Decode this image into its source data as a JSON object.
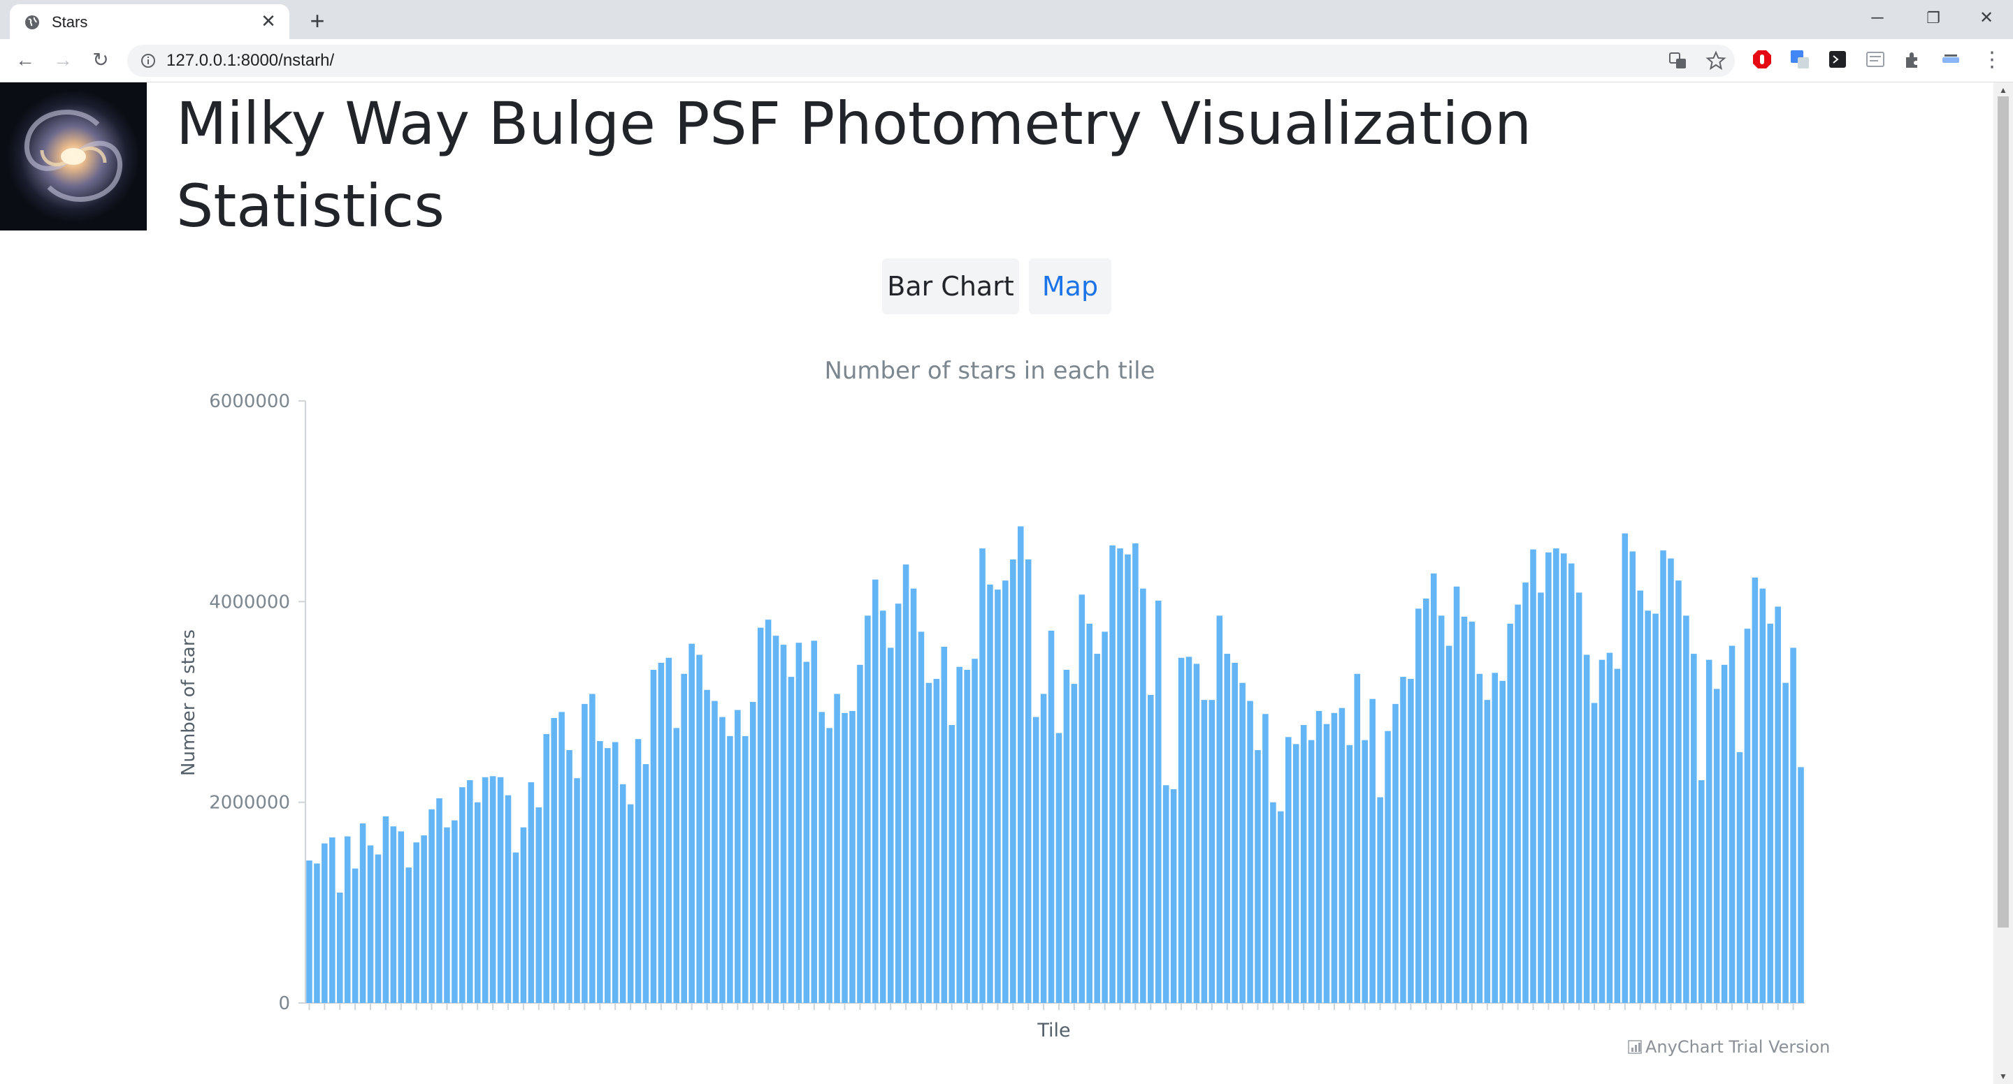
{
  "browser": {
    "tab_title": "Stars",
    "url": "127.0.0.1:8000/nstarh/",
    "icons": [
      "globe-icon",
      "close-icon",
      "plus-icon",
      "back-icon",
      "forward-icon",
      "reload-icon",
      "info-icon",
      "translate-icon",
      "star-icon",
      "extensions-icon",
      "menu-icon"
    ]
  },
  "page": {
    "title": "Milky Way Bulge PSF Photometry Visualization Statistics",
    "nav": {
      "bar_chart_label": "Bar Chart",
      "map_label": "Map"
    },
    "credit": "AnyChart Trial Version"
  },
  "colors": {
    "bar": "#64b5f6",
    "active_link": "#1a73e8",
    "title": "#212529"
  },
  "chart_data": {
    "type": "bar",
    "title": "Number of stars in each tile",
    "xlabel": "Tile",
    "ylabel": "Number of stars",
    "ylim": [
      0,
      6000000
    ],
    "yticks": [
      "0",
      "2000000",
      "4000000",
      "6000000"
    ],
    "values": [
      1420000,
      1390000,
      1590000,
      1650000,
      1100000,
      1660000,
      1340000,
      1790000,
      1570000,
      1480000,
      1860000,
      1760000,
      1710000,
      1350000,
      1600000,
      1670000,
      1930000,
      2040000,
      1750000,
      1820000,
      2150000,
      2220000,
      2000000,
      2250000,
      2260000,
      2250000,
      2070000,
      1500000,
      1750000,
      2200000,
      1950000,
      2680000,
      2840000,
      2900000,
      2520000,
      2240000,
      2980000,
      3080000,
      2610000,
      2540000,
      2600000,
      2180000,
      1980000,
      2630000,
      2380000,
      3320000,
      3390000,
      3440000,
      2740000,
      3280000,
      3580000,
      3470000,
      3120000,
      3010000,
      2850000,
      2660000,
      2920000,
      2660000,
      3000000,
      3740000,
      3820000,
      3660000,
      3570000,
      3250000,
      3590000,
      3400000,
      3610000,
      2900000,
      2740000,
      3080000,
      2890000,
      2910000,
      3370000,
      3860000,
      4220000,
      3910000,
      3540000,
      3980000,
      4370000,
      4130000,
      3700000,
      3190000,
      3230000,
      3550000,
      2770000,
      3350000,
      3320000,
      3430000,
      4530000,
      4170000,
      4120000,
      4210000,
      4420000,
      4750000,
      4420000,
      2850000,
      3080000,
      3710000,
      2690000,
      3320000,
      3180000,
      4070000,
      3780000,
      3480000,
      3700000,
      4560000,
      4530000,
      4470000,
      4580000,
      4130000,
      3070000,
      4010000,
      2170000,
      2130000,
      3440000,
      3450000,
      3380000,
      3020000,
      3020000,
      3860000,
      3480000,
      3390000,
      3190000,
      3010000,
      2520000,
      2880000,
      2000000,
      1910000,
      2650000,
      2580000,
      2770000,
      2620000,
      2910000,
      2780000,
      2890000,
      2940000,
      2570000,
      3280000,
      2620000,
      3030000,
      2050000,
      2710000,
      2980000,
      3250000,
      3230000,
      3930000,
      4030000,
      4280000,
      3860000,
      3560000,
      4150000,
      3850000,
      3800000,
      3280000,
      3020000,
      3290000,
      3210000,
      3780000,
      3970000,
      4190000,
      4520000,
      4090000,
      4490000,
      4530000,
      4480000,
      4380000,
      4090000,
      3470000,
      2990000,
      3420000,
      3490000,
      3330000,
      4680000,
      4500000,
      4110000,
      3910000,
      3880000,
      4510000,
      4430000,
      4210000,
      3860000,
      3480000,
      2220000,
      3420000,
      3130000,
      3370000,
      3560000,
      2500000,
      3730000,
      4240000,
      4130000,
      3780000,
      3950000,
      3190000,
      3540000,
      2350000
    ]
  }
}
